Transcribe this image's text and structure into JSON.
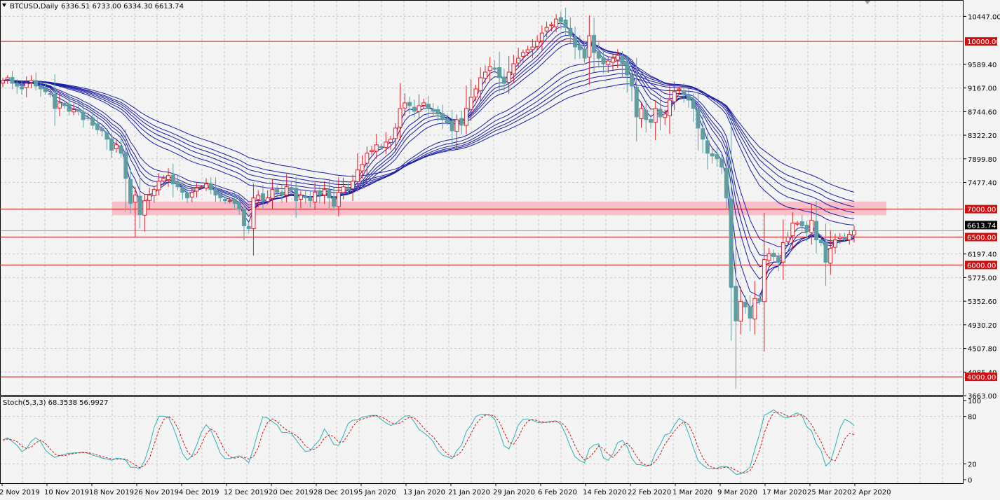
{
  "chart_header": {
    "symbol": "BTCUSD,Daily",
    "ohlc": "6336.51 6733.00 6334.30 6613.74"
  },
  "stoch_header": "Stoch(5,3,3) 68.3538 56.9927",
  "colors": {
    "background": "#f4f4f4",
    "grid": "#c8c8c8",
    "bull_candle": "#e0202a",
    "bear_candle": "#5f9ea0",
    "ema_lines": "#1a1aa6",
    "level_lines": "#d01010",
    "zone_fill": "#f7b9c4",
    "stoch_main": "#2bb0b8",
    "stoch_signal": "#d01010"
  },
  "chart_data": [
    {
      "type": "candlestick",
      "title": "BTCUSD,Daily",
      "x_tick_labels": [
        "2 Nov 2019",
        "10 Nov 2019",
        "18 Nov 2019",
        "26 Nov 2019",
        "4 Dec 2019",
        "12 Dec 2019",
        "20 Dec 2019",
        "28 Dec 2019",
        "5 Jan 2020",
        "13 Jan 2020",
        "21 Jan 2020",
        "29 Jan 2020",
        "6 Feb 2020",
        "14 Feb 2020",
        "22 Feb 2020",
        "1 Mar 2020",
        "9 Mar 2020",
        "17 Mar 2020",
        "25 Mar 2020",
        "2 Apr 2020"
      ],
      "y_tick_labels": [
        "10447.00",
        "9589.40",
        "9167.00",
        "8744.60",
        "8322.20",
        "7899.80",
        "7477.40",
        "6197.40",
        "5775.00",
        "5352.60",
        "4930.20",
        "4507.80",
        "4085.40",
        "3663.00"
      ],
      "ylim": [
        3663,
        10728
      ],
      "grid": true,
      "levels": [
        {
          "label": "10000.00",
          "value": 10000
        },
        {
          "label": "7000.00",
          "value": 7000
        },
        {
          "label": "6500.00",
          "value": 6500
        },
        {
          "label": "6000.00",
          "value": 6000
        },
        {
          "label": "4000.00",
          "value": 4000
        }
      ],
      "zone": {
        "from": 6890,
        "to": 7135
      },
      "current_price_label": "6613.74",
      "current_price": 6613.74,
      "ema_count": 12,
      "closes": [
        9300,
        9350,
        9250,
        9200,
        9150,
        9250,
        9300,
        9200,
        9150,
        9100,
        9050,
        8800,
        8900,
        8850,
        8750,
        8780,
        8750,
        8600,
        8620,
        8500,
        8420,
        8400,
        8250,
        8050,
        8150,
        8000,
        7550,
        7100,
        7250,
        6900,
        7150,
        7250,
        7350,
        7500,
        7550,
        7600,
        7450,
        7400,
        7300,
        7200,
        7300,
        7380,
        7400,
        7450,
        7350,
        7250,
        7200,
        7150,
        7150,
        7100,
        7000,
        6700,
        6650,
        7200,
        7250,
        7150,
        7200,
        7350,
        7300,
        7250,
        7400,
        7350,
        7150,
        7250,
        7200,
        7150,
        7300,
        7250,
        7350,
        7200,
        7050,
        7300,
        7400,
        7350,
        7500,
        7700,
        7800,
        8000,
        8050,
        8150,
        8100,
        8200,
        8250,
        8450,
        8800,
        8900,
        8850,
        8750,
        8850,
        8900,
        8800,
        8750,
        8700,
        8600,
        8550,
        8400,
        8600,
        8500,
        8800,
        9000,
        9150,
        9350,
        9450,
        9550,
        9500,
        9350,
        9250,
        9450,
        9600,
        9700,
        9800,
        9850,
        9900,
        10000,
        10150,
        10250,
        10300,
        10400,
        10350,
        10250,
        10100,
        9900,
        9850,
        9700,
        10100,
        9800,
        9700,
        9600,
        9650,
        9700,
        9750,
        9600,
        9400,
        9200,
        8650,
        8800,
        8600,
        8550,
        8800,
        8650,
        8700,
        8950,
        9100,
        9150,
        9050,
        8950,
        8800,
        8450,
        8250,
        8000,
        7950,
        7900,
        7750,
        7200,
        5600,
        5000,
        5350,
        5250,
        5050,
        5400,
        5350,
        6100,
        6200,
        6150,
        6050,
        6400,
        6500,
        6750,
        6750,
        6700,
        6600,
        6800,
        6450,
        6400,
        6050,
        6300,
        6450,
        6500,
        6450,
        6550,
        6613.74
      ],
      "stochastic": {
        "title": "Stoch(5,3,3)",
        "main_value": 68.3538,
        "signal_value": 56.9927,
        "y_tick_labels": [
          "100",
          "80",
          "20",
          "0"
        ],
        "ylim": [
          0,
          100
        ]
      }
    }
  ]
}
